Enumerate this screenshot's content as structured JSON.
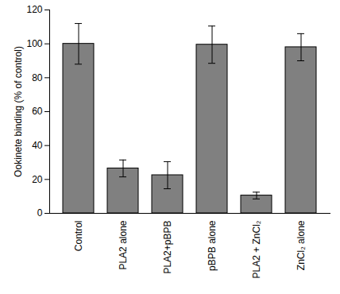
{
  "chart_data": {
    "type": "bar",
    "categories": [
      "Control",
      "PLA2 alone",
      "PLA2+pBPB",
      "pBPB alone",
      "PLA2 + ZnCl₂",
      "ZnCl₂ alone"
    ],
    "values": [
      100,
      26.5,
      22.5,
      99.5,
      10.5,
      98
    ],
    "errors": [
      12,
      5,
      8,
      11,
      2,
      8
    ],
    "color": "#808080",
    "ylabel": "Ookinete binding (% of control)",
    "ylim": [
      0,
      120
    ],
    "yticks": [
      0,
      20,
      40,
      60,
      80,
      100,
      120
    ]
  }
}
